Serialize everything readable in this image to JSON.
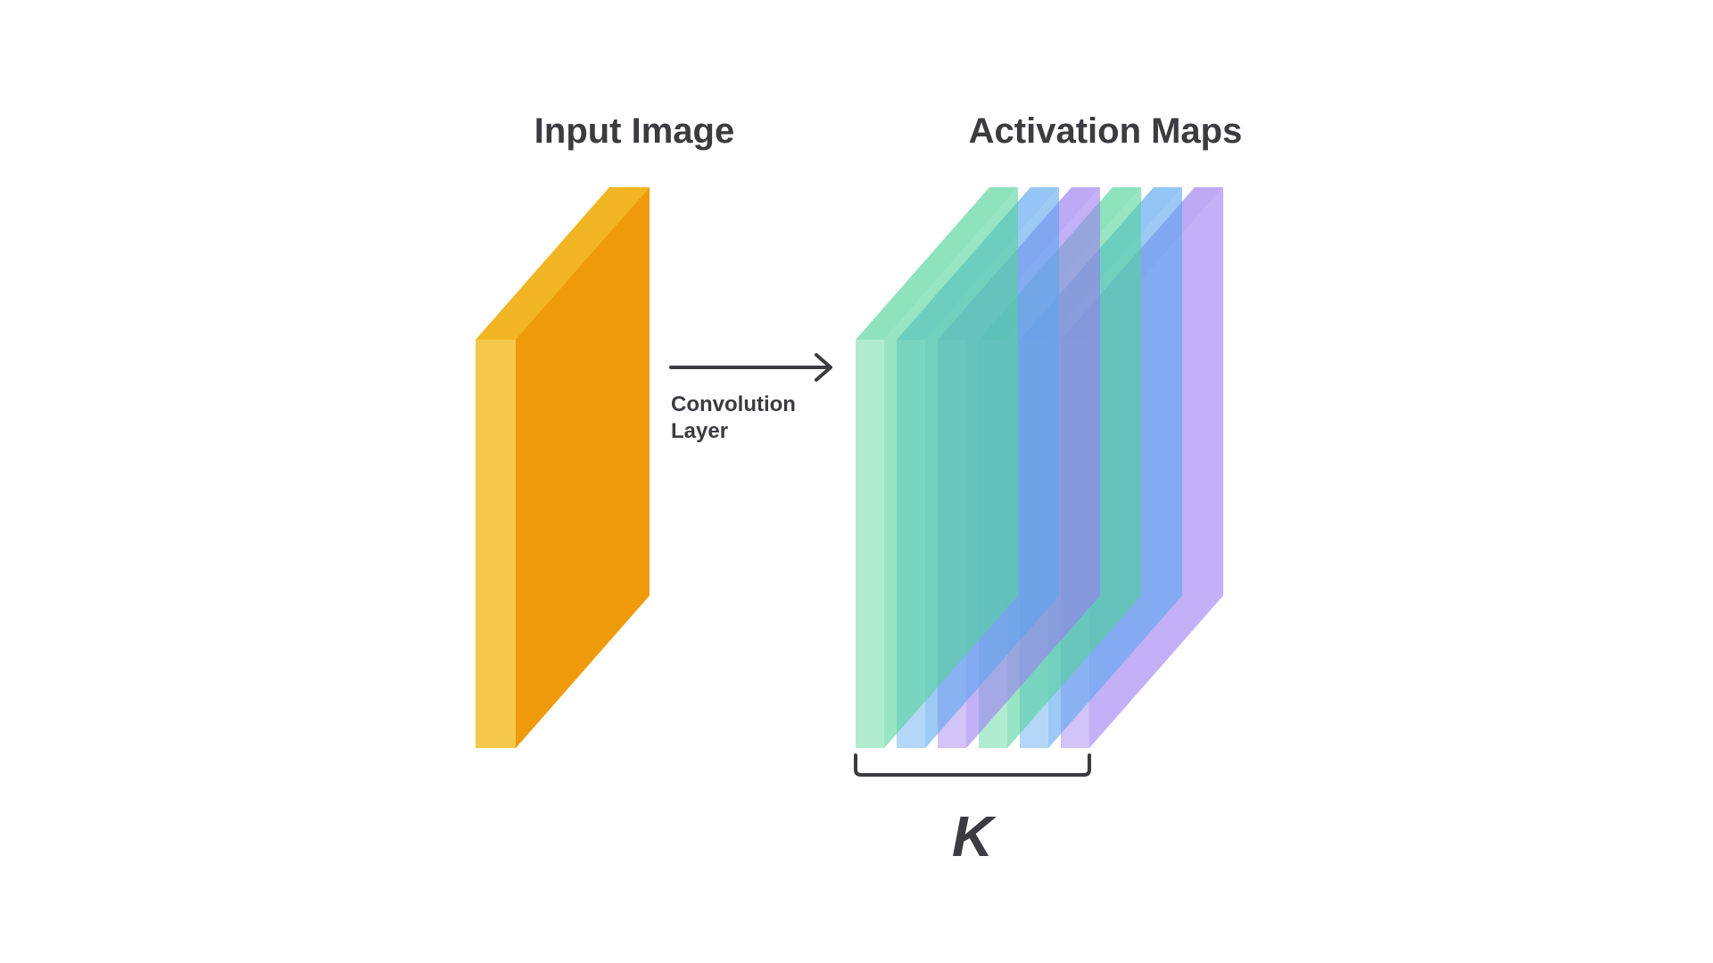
{
  "titles": {
    "input": "Input Image",
    "output": "Activation Maps"
  },
  "arrow": {
    "label_line1": "Convolution",
    "label_line2": "Layer"
  },
  "bracket_label": "K",
  "colors": {
    "input_front": "#f5ca4c",
    "input_side": "#ee9a0b",
    "input_top": "#f2b523",
    "ink": "#3b3b40",
    "map_green": "#52d49a",
    "map_blue": "#5aa6ee",
    "map_purple": "#9b7bf0"
  },
  "activation_map_colors": [
    "green",
    "blue",
    "purple",
    "green",
    "blue",
    "purple"
  ]
}
